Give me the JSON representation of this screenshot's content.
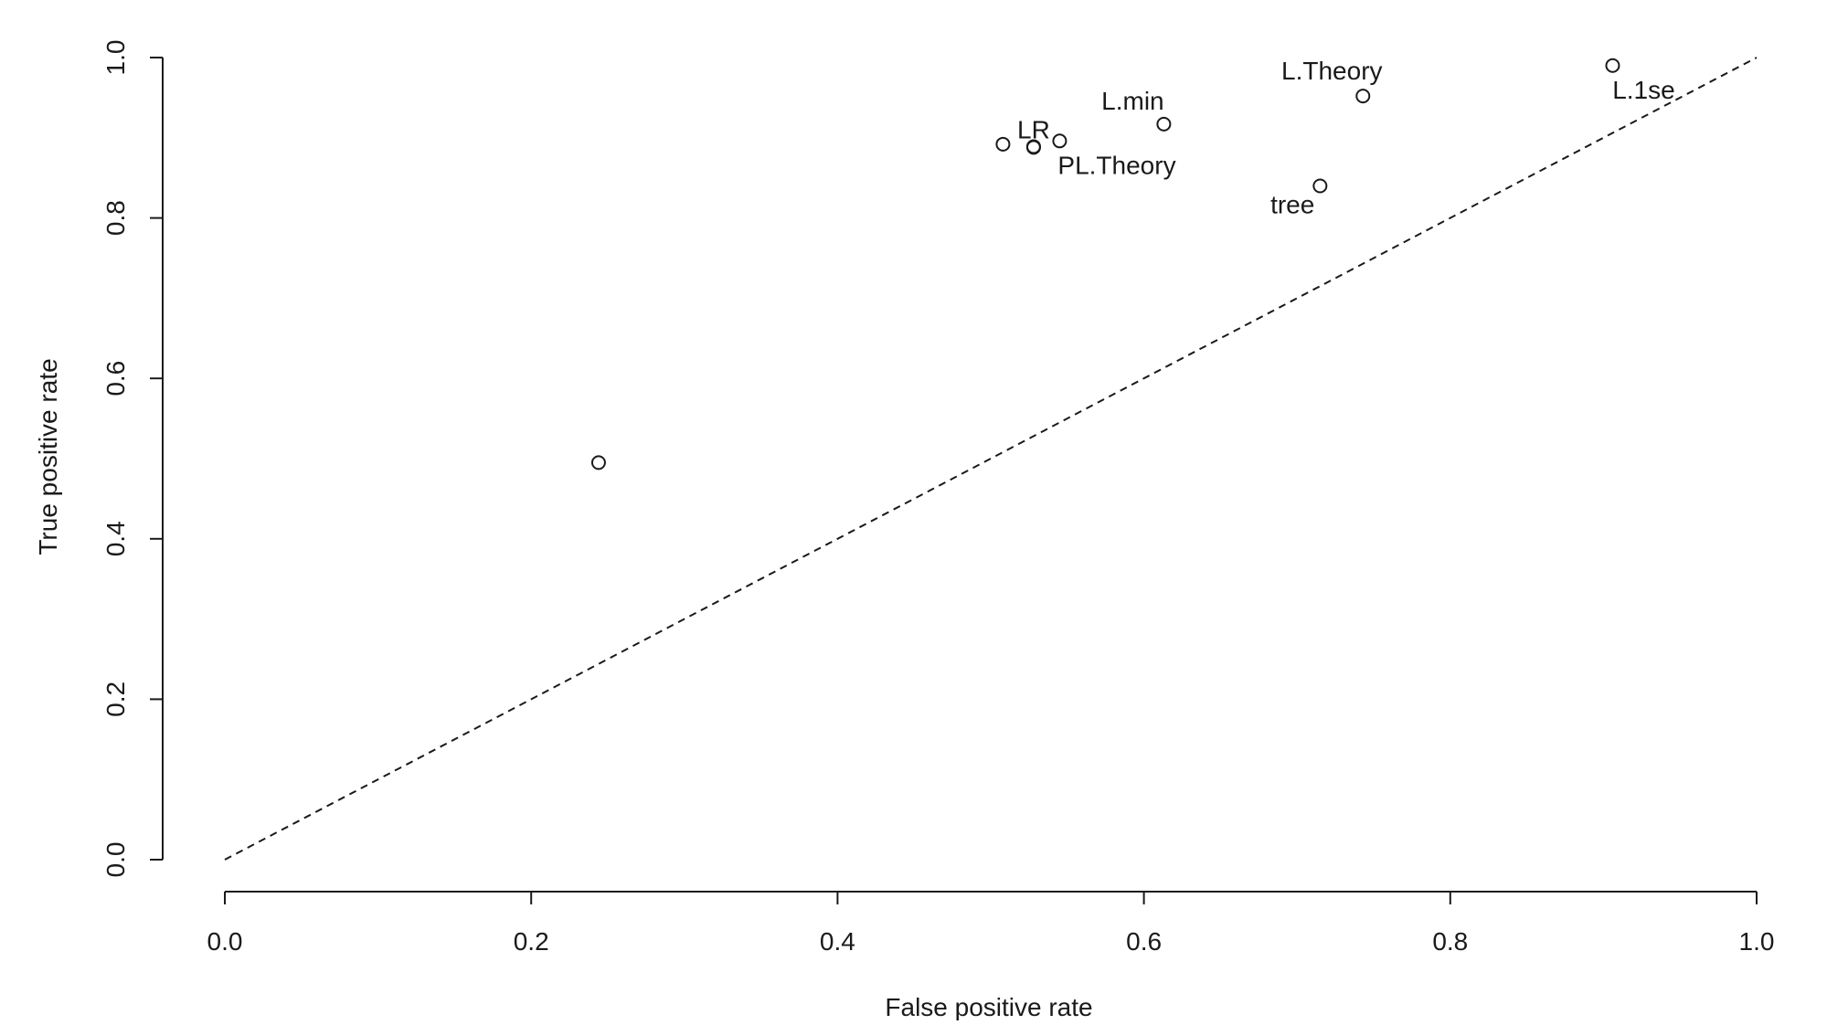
{
  "chart_data": {
    "type": "scatter",
    "title": "",
    "xlabel": "False positive rate",
    "ylabel": "True positive rate",
    "xlim": [
      0,
      1
    ],
    "ylim": [
      0,
      1
    ],
    "x_ticks": [
      "0.0",
      "0.2",
      "0.4",
      "0.6",
      "0.8",
      "1.0"
    ],
    "y_ticks": [
      "0.0",
      "0.2",
      "0.4",
      "0.6",
      "0.8",
      "1.0"
    ],
    "grid": false,
    "legend": "none",
    "reference_line": {
      "from": [
        0,
        0
      ],
      "to": [
        1,
        1
      ],
      "style": "dashed"
    },
    "points": [
      {
        "x": 0.244,
        "y": 0.495,
        "label": ""
      },
      {
        "x": 0.508,
        "y": 0.892,
        "label": ""
      },
      {
        "x": 0.528,
        "y": 0.888,
        "label": "LR"
      },
      {
        "x": 0.528,
        "y": 0.889,
        "label": ""
      },
      {
        "x": 0.545,
        "y": 0.896,
        "label": "PL.Theory"
      },
      {
        "x": 0.613,
        "y": 0.917,
        "label": "L.min"
      },
      {
        "x": 0.715,
        "y": 0.84,
        "label": "tree"
      },
      {
        "x": 0.743,
        "y": 0.952,
        "label": "L.Theory"
      },
      {
        "x": 0.906,
        "y": 0.99,
        "label": "L.1se"
      }
    ]
  }
}
